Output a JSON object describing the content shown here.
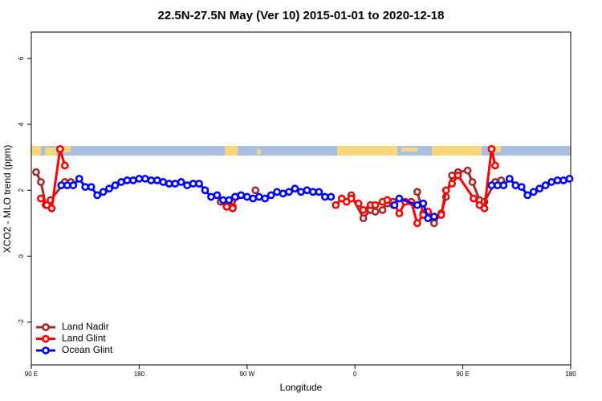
{
  "chart_data": {
    "type": "line",
    "title": "22.5N-27.5N May (Ver 10)   2015-01-01 to 2020-12-18",
    "x_label": "Longitude",
    "y_label": "XCO2 - MLO trend (ppm)",
    "xlim": [
      90,
      540
    ],
    "xticks": [
      {
        "value": 90,
        "label": "90 E"
      },
      180,
      {
        "value": 270,
        "label": "90 W"
      },
      {
        "value": 360,
        "label": "0"
      },
      {
        "value": 450,
        "label": "90 E"
      },
      {
        "value": 540,
        "label": "180"
      }
    ],
    "ylim": [
      -3.3,
      6.8
    ],
    "yticks": [
      -2,
      0,
      2,
      4,
      6
    ],
    "legend": "bottom-left",
    "series": [
      {
        "name": "Land Nadir",
        "color": "#a52a2a",
        "x": [
          94,
          98,
          102,
          106,
          118,
          123,
          200,
          248,
          253,
          258,
          270,
          277,
          320,
          357,
          367,
          373,
          377,
          383,
          387,
          392,
          400,
          412,
          417,
          421,
          426,
          432,
          436,
          441,
          446,
          454,
          458,
          464,
          468,
          477,
          482
        ],
        "values": [
          2.55,
          2.25,
          1.55,
          1.7,
          2.25,
          2.25,
          null,
          1.65,
          1.5,
          1.5,
          null,
          2.0,
          null,
          1.85,
          1.15,
          1.4,
          1.35,
          1.4,
          1.6,
          1.55,
          null,
          1.95,
          1.3,
          1.15,
          1.0,
          1.3,
          1.8,
          2.45,
          2.55,
          2.6,
          2.25,
          1.7,
          1.65,
          2.25,
          2.3
        ]
      },
      {
        "name": "Land Glint",
        "color": "#ff0000",
        "x": [
          98,
          103,
          107,
          114,
          118,
          200,
          253,
          258,
          261,
          300,
          344,
          349,
          353,
          357,
          363,
          367,
          373,
          377,
          383,
          387,
          392,
          397,
          402,
          407,
          412,
          417,
          421,
          426,
          432,
          436,
          441,
          446,
          459,
          464,
          468,
          474,
          477
        ],
        "values": [
          1.75,
          1.55,
          1.45,
          3.25,
          2.75,
          null,
          1.5,
          1.45,
          1.8,
          null,
          1.55,
          1.75,
          1.65,
          1.75,
          1.6,
          1.4,
          1.55,
          1.55,
          1.65,
          1.7,
          1.65,
          1.3,
          1.65,
          1.65,
          1.0,
          1.25,
          1.35,
          1.2,
          1.25,
          2.0,
          2.2,
          2.45,
          1.75,
          1.55,
          1.45,
          3.25,
          2.75
        ]
      },
      {
        "name": "Ocean Glint",
        "color": "#0000ff",
        "x": [
          115,
          120,
          125,
          130,
          135,
          140,
          145,
          150,
          155,
          160,
          165,
          170,
          175,
          180,
          185,
          190,
          195,
          200,
          205,
          210,
          215,
          220,
          225,
          230,
          235,
          240,
          245,
          250,
          255,
          260,
          265,
          270,
          275,
          280,
          285,
          290,
          295,
          300,
          305,
          310,
          315,
          320,
          325,
          330,
          335,
          340,
          370,
          393,
          397,
          412,
          417,
          421,
          426,
          450,
          474,
          479,
          484,
          489,
          494,
          499,
          504,
          509,
          514,
          519,
          524,
          529,
          534,
          539
        ],
        "values": [
          2.15,
          2.15,
          2.15,
          2.35,
          2.1,
          2.1,
          1.85,
          1.95,
          2.05,
          2.15,
          2.25,
          2.3,
          2.3,
          2.35,
          2.35,
          2.3,
          2.3,
          2.25,
          2.2,
          2.2,
          2.25,
          2.15,
          2.2,
          2.2,
          2.0,
          1.8,
          1.85,
          1.7,
          1.7,
          1.8,
          1.85,
          1.8,
          1.75,
          1.8,
          1.75,
          1.85,
          1.95,
          1.9,
          1.95,
          2.05,
          1.95,
          2.0,
          1.95,
          1.95,
          1.8,
          1.8,
          null,
          1.55,
          1.75,
          1.55,
          1.6,
          1.15,
          1.2,
          null,
          2.15,
          2.15,
          2.15,
          2.35,
          2.15,
          2.1,
          1.85,
          1.95,
          2.05,
          2.15,
          2.25,
          2.3,
          2.3,
          2.35
        ]
      }
    ]
  }
}
